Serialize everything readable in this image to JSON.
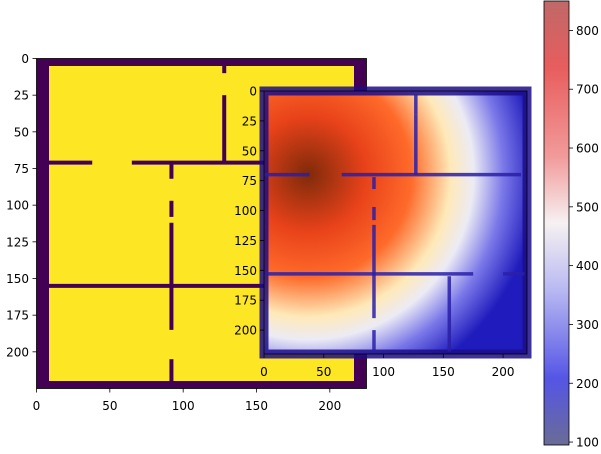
{
  "chart_data": [
    {
      "type": "heatmap",
      "title": "",
      "description_kind": "binary floor-plan occupancy grid",
      "colormap": "viridis",
      "values_shown": [
        "free space (yellow)",
        "wall (dark purple)"
      ],
      "xlim": [
        0,
        225
      ],
      "ylim": [
        225,
        0
      ],
      "x_ticks": [
        0,
        50,
        100,
        150,
        200
      ],
      "y_ticks": [
        0,
        25,
        50,
        75,
        100,
        125,
        150,
        175,
        200
      ],
      "colors": {
        "free": "#fde725",
        "wall": "#440154",
        "wall_edge": "#31688e"
      }
    },
    {
      "type": "heatmap",
      "title": "",
      "description_kind": "signal-strength heatmap overlaid on floor plan",
      "colormap": "seismic",
      "peak_location": [
        45,
        75
      ],
      "xlim": [
        0,
        220
      ],
      "ylim": [
        220,
        0
      ],
      "x_ticks": [
        0,
        50,
        100,
        150,
        200
      ],
      "y_ticks": [
        0,
        25,
        50,
        75,
        100,
        125,
        150,
        175,
        200
      ],
      "colorbar": {
        "min": 95,
        "max": 850,
        "ticks": [
          100,
          200,
          300,
          400,
          500,
          600,
          700,
          800
        ]
      }
    }
  ]
}
